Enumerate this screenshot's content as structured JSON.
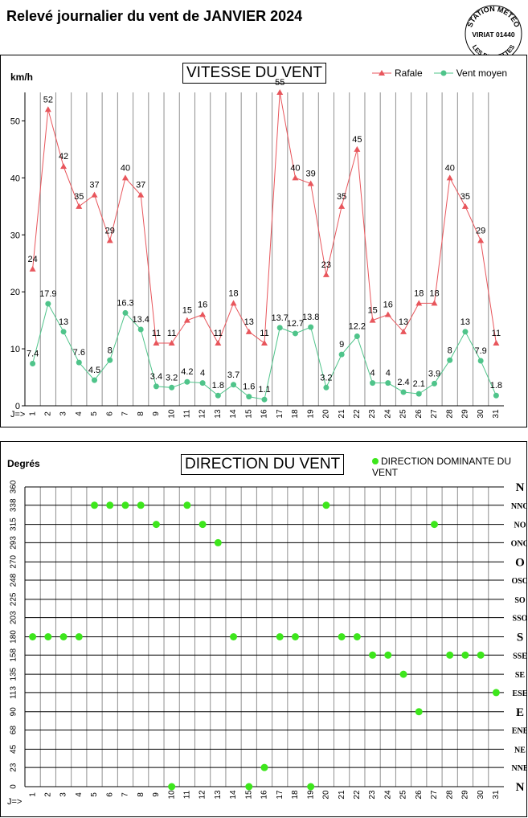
{
  "page": {
    "title": "Relevé journalier du vent de JANVIER 2024",
    "stamp": {
      "top": "STATION METEO",
      "middle": "VIRIAT 01440",
      "bottom": "LES FAUVETTES"
    }
  },
  "colors": {
    "rafale": "#e8565c",
    "moyen": "#4fc48a",
    "direction": "#3de61c",
    "grid": "#909090"
  },
  "chart_data": [
    {
      "type": "line",
      "title": "VITESSE DU VENT",
      "ylabel": "km/h",
      "xlabel": "J=>",
      "ylim": [
        0,
        55
      ],
      "yticks": [
        0,
        10,
        20,
        30,
        40,
        50
      ],
      "grid": "vertical",
      "legend_position": "top-right",
      "x": [
        1,
        2,
        3,
        4,
        5,
        6,
        7,
        8,
        9,
        10,
        11,
        12,
        13,
        14,
        15,
        16,
        17,
        18,
        19,
        20,
        21,
        22,
        23,
        24,
        25,
        26,
        27,
        28,
        29,
        30,
        31
      ],
      "series": [
        {
          "name": "Rafale",
          "marker": "triangle",
          "values": [
            24,
            52,
            42,
            35,
            37,
            29,
            40,
            37,
            11,
            11,
            15,
            16,
            11,
            18,
            13,
            11,
            55,
            40,
            39,
            23,
            35,
            45,
            15,
            16,
            13,
            18,
            18,
            40,
            35,
            29,
            11
          ]
        },
        {
          "name": "Vent moyen",
          "marker": "circle",
          "values": [
            7.4,
            17.9,
            13,
            7.6,
            4.5,
            8,
            16.3,
            13.4,
            3.4,
            3.2,
            4.2,
            4,
            1.8,
            3.7,
            1.6,
            1.1,
            13.7,
            12.7,
            13.8,
            3.2,
            9,
            12.2,
            4,
            4,
            2.4,
            2.1,
            3.9,
            8,
            13,
            7.9,
            1.8
          ]
        }
      ]
    },
    {
      "type": "scatter",
      "title": "DIRECTION DU VENT",
      "ylabel": "Degrés",
      "xlabel": "J=>",
      "ylim": [
        0,
        360
      ],
      "yticks": [
        0,
        23,
        45,
        68,
        90,
        113,
        135,
        158,
        180,
        203,
        225,
        248,
        270,
        293,
        315,
        338,
        360
      ],
      "direction_labels": [
        "N",
        "NNE",
        "NE",
        "ENE",
        "E",
        "ESE",
        "SE",
        "SSE",
        "S",
        "SSO",
        "SO",
        "OSO",
        "O",
        "ONO",
        "NO",
        "NNO",
        "N"
      ],
      "grid": "both",
      "legend_position": "top-right",
      "x": [
        1,
        2,
        3,
        4,
        5,
        6,
        7,
        8,
        9,
        10,
        11,
        12,
        13,
        14,
        15,
        16,
        17,
        18,
        19,
        20,
        21,
        22,
        23,
        24,
        25,
        26,
        27,
        28,
        29,
        30,
        31
      ],
      "series": [
        {
          "name": "DIRECTION DOMINANTE DU VENT",
          "values": [
            180,
            180,
            180,
            180,
            338,
            338,
            338,
            338,
            315,
            0,
            338,
            315,
            293,
            180,
            0,
            23,
            180,
            180,
            0,
            338,
            180,
            180,
            158,
            158,
            135,
            90,
            315,
            158,
            158,
            158,
            113
          ]
        }
      ]
    }
  ]
}
